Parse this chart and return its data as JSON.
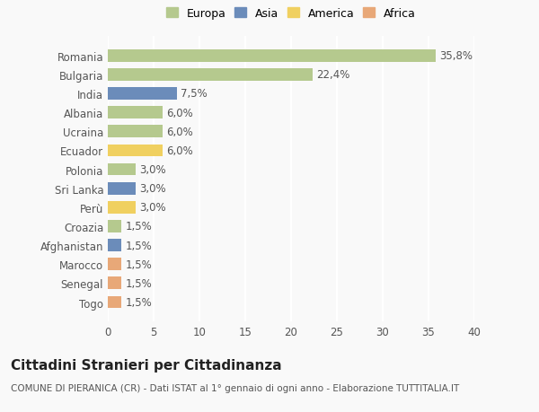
{
  "countries": [
    "Romania",
    "Bulgaria",
    "India",
    "Albania",
    "Ucraina",
    "Ecuador",
    "Polonia",
    "Sri Lanka",
    "Perù",
    "Croazia",
    "Afghanistan",
    "Marocco",
    "Senegal",
    "Togo"
  ],
  "values": [
    35.8,
    22.4,
    7.5,
    6.0,
    6.0,
    6.0,
    3.0,
    3.0,
    3.0,
    1.5,
    1.5,
    1.5,
    1.5,
    1.5
  ],
  "labels": [
    "35,8%",
    "22,4%",
    "7,5%",
    "6,0%",
    "6,0%",
    "6,0%",
    "3,0%",
    "3,0%",
    "3,0%",
    "1,5%",
    "1,5%",
    "1,5%",
    "1,5%",
    "1,5%"
  ],
  "continents": [
    "Europa",
    "Europa",
    "Asia",
    "Europa",
    "Europa",
    "America",
    "Europa",
    "Asia",
    "America",
    "Europa",
    "Asia",
    "Africa",
    "Africa",
    "Africa"
  ],
  "colors": {
    "Europa": "#b5c98e",
    "Asia": "#6b8cba",
    "America": "#f0d060",
    "Africa": "#e8a878"
  },
  "xlim": [
    0,
    40
  ],
  "xticks": [
    0,
    5,
    10,
    15,
    20,
    25,
    30,
    35,
    40
  ],
  "title": "Cittadini Stranieri per Cittadinanza",
  "subtitle": "COMUNE DI PIERANICA (CR) - Dati ISTAT al 1° gennaio di ogni anno - Elaborazione TUTTITALIA.IT",
  "background_color": "#f9f9f9",
  "bar_height": 0.65,
  "grid_color": "#ffffff",
  "label_fontsize": 8.5,
  "tick_fontsize": 8.5,
  "title_fontsize": 11,
  "subtitle_fontsize": 7.5,
  "legend_entries": [
    "Europa",
    "Asia",
    "America",
    "Africa"
  ]
}
